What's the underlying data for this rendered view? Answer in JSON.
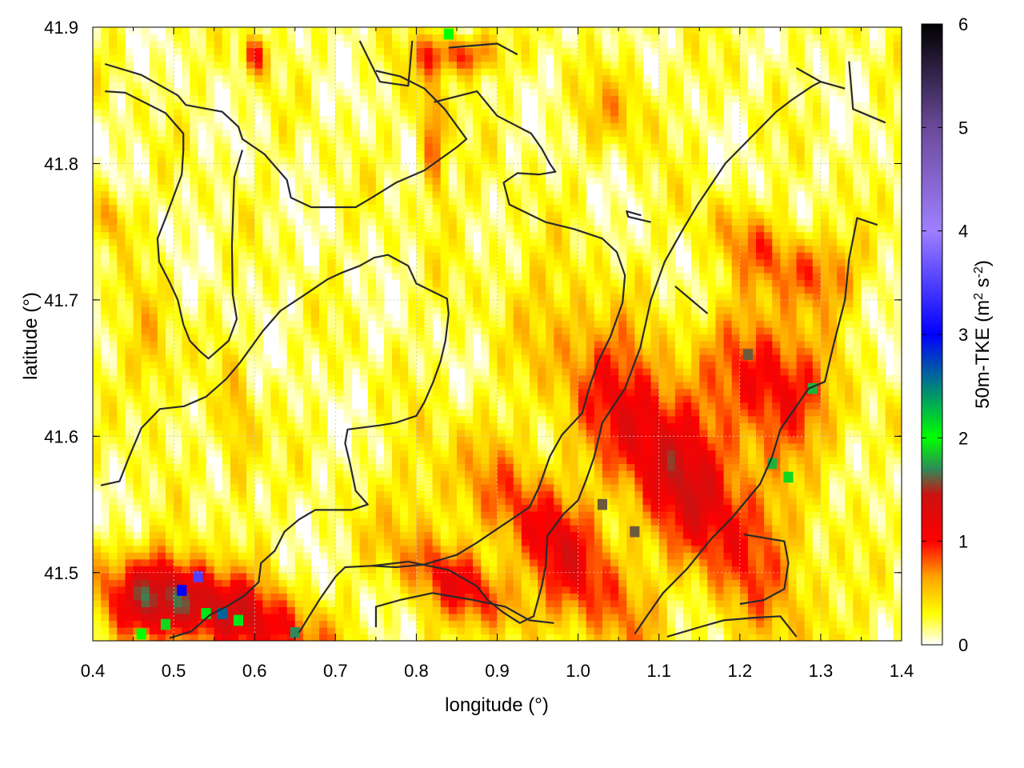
{
  "chart_data": {
    "type": "heatmap",
    "xlabel": "longitude (°)",
    "ylabel": "latitude (°)",
    "xlim": [
      0.4,
      1.4
    ],
    "ylim": [
      41.45,
      41.9
    ],
    "xticks": [
      "0.4",
      "0.5",
      "0.6",
      "0.7",
      "0.8",
      "0.9",
      "1.0",
      "1.1",
      "1.2",
      "1.3",
      "1.4"
    ],
    "yticks": [
      "41.5",
      "41.6",
      "41.7",
      "41.8",
      "41.9"
    ],
    "grid": true,
    "colorbar": {
      "label": "50m-TKE (m",
      "label_sup1": "2",
      "label_mid": " s",
      "label_sup2": "-2",
      "label_end": ")",
      "range": [
        0,
        6
      ],
      "ticks": [
        "0",
        "1",
        "2",
        "3",
        "4",
        "5",
        "6"
      ],
      "stops": [
        {
          "v": 0.0,
          "c": "#ffffff"
        },
        {
          "v": 0.3,
          "c": "#ffff00"
        },
        {
          "v": 0.65,
          "c": "#ffa500"
        },
        {
          "v": 1.0,
          "c": "#ff0000"
        },
        {
          "v": 1.45,
          "c": "#cc1111"
        },
        {
          "v": 1.7,
          "c": "#2e8b57"
        },
        {
          "v": 2.0,
          "c": "#00ff00"
        },
        {
          "v": 2.5,
          "c": "#008080"
        },
        {
          "v": 3.0,
          "c": "#0000ff"
        },
        {
          "v": 4.0,
          "c": "#9f7fff"
        },
        {
          "v": 5.0,
          "c": "#6a4a9a"
        },
        {
          "v": 6.0,
          "c": "#000000"
        }
      ]
    },
    "regions": [
      {
        "lon": 1.12,
        "lat": 41.58,
        "value": 1.2,
        "sx": 0.17,
        "sy": 0.05,
        "rot": -0.6
      },
      {
        "lon": 0.98,
        "lat": 41.52,
        "value": 0.95,
        "sx": 0.12,
        "sy": 0.04,
        "rot": -0.55
      },
      {
        "lon": 1.24,
        "lat": 41.64,
        "value": 1.0,
        "sx": 0.08,
        "sy": 0.045,
        "rot": -0.4
      },
      {
        "lon": 0.86,
        "lat": 41.49,
        "value": 0.9,
        "sx": 0.08,
        "sy": 0.025,
        "rot": -0.3
      },
      {
        "lon": 0.57,
        "lat": 41.47,
        "value": 1.1,
        "sx": 0.12,
        "sy": 0.03,
        "rot": -0.2
      },
      {
        "lon": 0.47,
        "lat": 41.48,
        "value": 0.8,
        "sx": 0.07,
        "sy": 0.03,
        "rot": 0.0
      },
      {
        "lon": 1.22,
        "lat": 41.74,
        "value": 0.5,
        "sx": 0.07,
        "sy": 0.025,
        "rot": -0.3
      },
      {
        "lon": 1.3,
        "lat": 41.72,
        "value": 0.55,
        "sx": 0.05,
        "sy": 0.03,
        "rot": 0.0
      },
      {
        "lon": 0.82,
        "lat": 41.82,
        "value": 0.7,
        "sx": 0.015,
        "sy": 0.05,
        "rot": 0.1
      },
      {
        "lon": 0.85,
        "lat": 41.88,
        "value": 0.8,
        "sx": 0.05,
        "sy": 0.015,
        "rot": 0.0
      },
      {
        "lon": 0.6,
        "lat": 41.88,
        "value": 0.8,
        "sx": 0.015,
        "sy": 0.015,
        "rot": 0.0
      },
      {
        "lon": 0.58,
        "lat": 41.6,
        "value": 0.45,
        "sx": 0.02,
        "sy": 0.05,
        "rot": 0.1
      },
      {
        "lon": 0.42,
        "lat": 41.76,
        "value": 0.5,
        "sx": 0.025,
        "sy": 0.02,
        "rot": 0.0
      },
      {
        "lon": 0.8,
        "lat": 41.55,
        "value": 0.3,
        "sx": 0.05,
        "sy": 0.04,
        "rot": 0.4
      },
      {
        "lon": 1.05,
        "lat": 41.84,
        "value": 0.35,
        "sx": 0.05,
        "sy": 0.03,
        "rot": 0.0
      },
      {
        "lon": 0.47,
        "lat": 41.66,
        "value": 0.4,
        "sx": 0.03,
        "sy": 0.05,
        "rot": 0.0
      }
    ],
    "hotspots": [
      {
        "lon": 0.53,
        "lat": 41.497,
        "value": 3.5
      },
      {
        "lon": 0.51,
        "lat": 41.487,
        "value": 3.0
      },
      {
        "lon": 0.54,
        "lat": 41.47,
        "value": 2.1
      },
      {
        "lon": 0.56,
        "lat": 41.47,
        "value": 2.6
      },
      {
        "lon": 0.58,
        "lat": 41.465,
        "value": 2.1
      },
      {
        "lon": 0.49,
        "lat": 41.462,
        "value": 1.9
      },
      {
        "lon": 0.46,
        "lat": 41.455,
        "value": 2.0
      },
      {
        "lon": 0.65,
        "lat": 41.456,
        "value": 1.7
      },
      {
        "lon": 0.84,
        "lat": 41.895,
        "value": 2.0
      },
      {
        "lon": 1.03,
        "lat": 41.55,
        "value": 1.6
      },
      {
        "lon": 1.07,
        "lat": 41.53,
        "value": 1.6
      },
      {
        "lon": 1.21,
        "lat": 41.66,
        "value": 1.6
      },
      {
        "lon": 1.29,
        "lat": 41.635,
        "value": 1.8
      },
      {
        "lon": 1.24,
        "lat": 41.58,
        "value": 1.8
      },
      {
        "lon": 1.26,
        "lat": 41.57,
        "value": 1.9
      }
    ],
    "contours": [
      [
        [
          0.415,
          41.873
        ],
        [
          0.46,
          41.865
        ],
        [
          0.505,
          41.85
        ],
        [
          0.515,
          41.843
        ],
        [
          0.56,
          41.838
        ],
        [
          0.58,
          41.827
        ],
        [
          0.585,
          41.818
        ],
        [
          0.612,
          41.807
        ],
        [
          0.64,
          41.788
        ],
        [
          0.645,
          41.775
        ],
        [
          0.67,
          41.768
        ],
        [
          0.725,
          41.768
        ],
        [
          0.745,
          41.775
        ],
        [
          0.775,
          41.786
        ],
        [
          0.81,
          41.795
        ],
        [
          0.85,
          41.812
        ],
        [
          0.862,
          41.818
        ],
        [
          0.835,
          41.84
        ],
        [
          0.81,
          41.855
        ],
        [
          0.78,
          41.864
        ],
        [
          0.75,
          41.868
        ]
      ],
      [
        [
          0.415,
          41.853
        ],
        [
          0.44,
          41.852
        ],
        [
          0.49,
          41.837
        ],
        [
          0.512,
          41.822
        ],
        [
          0.512,
          41.81
        ],
        [
          0.51,
          41.792
        ],
        [
          0.49,
          41.76
        ],
        [
          0.48,
          41.745
        ],
        [
          0.482,
          41.728
        ],
        [
          0.495,
          41.713
        ],
        [
          0.505,
          41.7
        ],
        [
          0.512,
          41.682
        ],
        [
          0.52,
          41.67
        ],
        [
          0.533,
          41.662
        ],
        [
          0.543,
          41.657
        ],
        [
          0.568,
          41.67
        ],
        [
          0.578,
          41.686
        ],
        [
          0.573,
          41.704
        ],
        [
          0.572,
          41.74
        ],
        [
          0.575,
          41.79
        ],
        [
          0.585,
          41.81
        ]
      ],
      [
        [
          0.41,
          41.564
        ],
        [
          0.433,
          41.567
        ],
        [
          0.445,
          41.585
        ],
        [
          0.46,
          41.606
        ],
        [
          0.483,
          41.62
        ],
        [
          0.513,
          41.622
        ],
        [
          0.54,
          41.629
        ],
        [
          0.565,
          41.642
        ],
        [
          0.582,
          41.654
        ],
        [
          0.61,
          41.677
        ],
        [
          0.632,
          41.692
        ],
        [
          0.66,
          41.703
        ],
        [
          0.69,
          41.715
        ],
        [
          0.708,
          41.72
        ],
        [
          0.73,
          41.725
        ],
        [
          0.748,
          41.731
        ],
        [
          0.765,
          41.733
        ],
        [
          0.79,
          41.725
        ],
        [
          0.8,
          41.712
        ],
        [
          0.838,
          41.701
        ],
        [
          0.84,
          41.69
        ],
        [
          0.836,
          41.67
        ],
        [
          0.83,
          41.655
        ],
        [
          0.821,
          41.64
        ],
        [
          0.81,
          41.625
        ],
        [
          0.8,
          41.615
        ],
        [
          0.775,
          41.61
        ],
        [
          0.755,
          41.608
        ],
        [
          0.715,
          41.605
        ],
        [
          0.712,
          41.595
        ],
        [
          0.718,
          41.58
        ],
        [
          0.725,
          41.56
        ],
        [
          0.74,
          41.55
        ],
        [
          0.72,
          41.546
        ],
        [
          0.675,
          41.546
        ],
        [
          0.655,
          41.539
        ],
        [
          0.637,
          41.53
        ],
        [
          0.625,
          41.516
        ],
        [
          0.608,
          41.507
        ],
        [
          0.605,
          41.493
        ],
        [
          0.587,
          41.483
        ],
        [
          0.568,
          41.476
        ],
        [
          0.545,
          41.469
        ],
        [
          0.522,
          41.457
        ],
        [
          0.495,
          41.452
        ]
      ],
      [
        [
          0.655,
          41.456
        ],
        [
          0.68,
          41.48
        ],
        [
          0.7,
          41.497
        ],
        [
          0.712,
          41.504
        ],
        [
          0.745,
          41.505
        ],
        [
          0.79,
          41.508
        ],
        [
          0.84,
          41.502
        ],
        [
          0.875,
          41.49
        ],
        [
          0.888,
          41.48
        ],
        [
          0.907,
          41.471
        ],
        [
          0.928,
          41.463
        ],
        [
          0.945,
          41.468
        ],
        [
          0.955,
          41.49
        ],
        [
          0.96,
          41.505
        ],
        [
          0.962,
          41.527
        ],
        [
          0.982,
          41.543
        ],
        [
          1.0,
          41.553
        ],
        [
          1.01,
          41.568
        ],
        [
          1.02,
          41.585
        ],
        [
          1.03,
          41.61
        ],
        [
          1.058,
          41.635
        ],
        [
          1.077,
          41.665
        ],
        [
          1.09,
          41.7
        ],
        [
          1.107,
          41.728
        ],
        [
          1.128,
          41.75
        ],
        [
          1.148,
          41.77
        ],
        [
          1.182,
          41.8
        ],
        [
          1.215,
          41.82
        ],
        [
          1.245,
          41.838
        ],
        [
          1.265,
          41.847
        ],
        [
          1.29,
          41.857
        ],
        [
          1.3,
          41.86
        ]
      ],
      [
        [
          0.822,
          41.845
        ],
        [
          0.875,
          41.853
        ],
        [
          0.9,
          41.835
        ],
        [
          0.942,
          41.822
        ],
        [
          0.955,
          41.811
        ],
        [
          0.965,
          41.8
        ],
        [
          0.972,
          41.794
        ],
        [
          0.952,
          41.792
        ],
        [
          0.925,
          41.793
        ],
        [
          0.908,
          41.786
        ],
        [
          0.915,
          41.77
        ],
        [
          0.96,
          41.757
        ],
        [
          0.995,
          41.752
        ],
        [
          1.03,
          41.745
        ],
        [
          1.048,
          41.735
        ],
        [
          1.058,
          41.718
        ],
        [
          1.055,
          41.698
        ],
        [
          1.04,
          41.673
        ],
        [
          1.025,
          41.655
        ],
        [
          1.015,
          41.638
        ],
        [
          1.005,
          41.617
        ],
        [
          0.98,
          41.601
        ],
        [
          0.965,
          41.585
        ],
        [
          0.952,
          41.563
        ],
        [
          0.94,
          41.548
        ],
        [
          0.915,
          41.538
        ],
        [
          0.895,
          41.53
        ],
        [
          0.875,
          41.522
        ],
        [
          0.85,
          41.513
        ],
        [
          0.81,
          41.506
        ],
        [
          0.775,
          41.504
        ],
        [
          0.745,
          41.505
        ]
      ],
      [
        [
          1.09,
          41.757
        ],
        [
          1.062,
          41.761
        ],
        [
          1.06,
          41.765
        ],
        [
          1.078,
          41.762
        ]
      ],
      [
        [
          1.205,
          41.528
        ],
        [
          1.255,
          41.523
        ],
        [
          1.26,
          41.507
        ],
        [
          1.255,
          41.488
        ],
        [
          1.23,
          41.48
        ],
        [
          1.2,
          41.477
        ]
      ],
      [
        [
          1.27,
          41.87
        ],
        [
          1.3,
          41.86
        ],
        [
          1.33,
          41.855
        ]
      ],
      [
        [
          0.73,
          41.89
        ],
        [
          0.755,
          41.86
        ],
        [
          0.79,
          41.857
        ],
        [
          0.795,
          41.89
        ]
      ],
      [
        [
          0.84,
          41.885
        ],
        [
          0.9,
          41.888
        ],
        [
          0.925,
          41.88
        ]
      ],
      [
        [
          1.335,
          41.875
        ],
        [
          1.34,
          41.84
        ],
        [
          1.38,
          41.83
        ]
      ],
      [
        [
          1.37,
          41.755
        ],
        [
          1.345,
          41.76
        ],
        [
          1.335,
          41.73
        ],
        [
          1.33,
          41.7
        ],
        [
          1.315,
          41.665
        ],
        [
          1.305,
          41.64
        ],
        [
          1.285,
          41.635
        ],
        [
          1.25,
          41.605
        ],
        [
          1.24,
          41.585
        ],
        [
          1.225,
          41.565
        ],
        [
          1.19,
          41.54
        ],
        [
          1.165,
          41.525
        ],
        [
          1.135,
          41.503
        ],
        [
          1.105,
          41.485
        ],
        [
          1.085,
          41.468
        ],
        [
          1.07,
          41.455
        ]
      ],
      [
        [
          1.11,
          41.453
        ],
        [
          1.15,
          41.46
        ],
        [
          1.18,
          41.465
        ],
        [
          1.22,
          41.467
        ],
        [
          1.25,
          41.468
        ],
        [
          1.27,
          41.453
        ]
      ],
      [
        [
          0.75,
          41.46
        ],
        [
          0.75,
          41.475
        ],
        [
          0.78,
          41.48
        ],
        [
          0.82,
          41.485
        ],
        [
          0.87,
          41.48
        ],
        [
          0.91,
          41.475
        ],
        [
          0.94,
          41.465
        ],
        [
          0.97,
          41.463
        ]
      ],
      [
        [
          1.12,
          41.71
        ],
        [
          1.14,
          41.7
        ],
        [
          1.16,
          41.69
        ]
      ]
    ]
  }
}
